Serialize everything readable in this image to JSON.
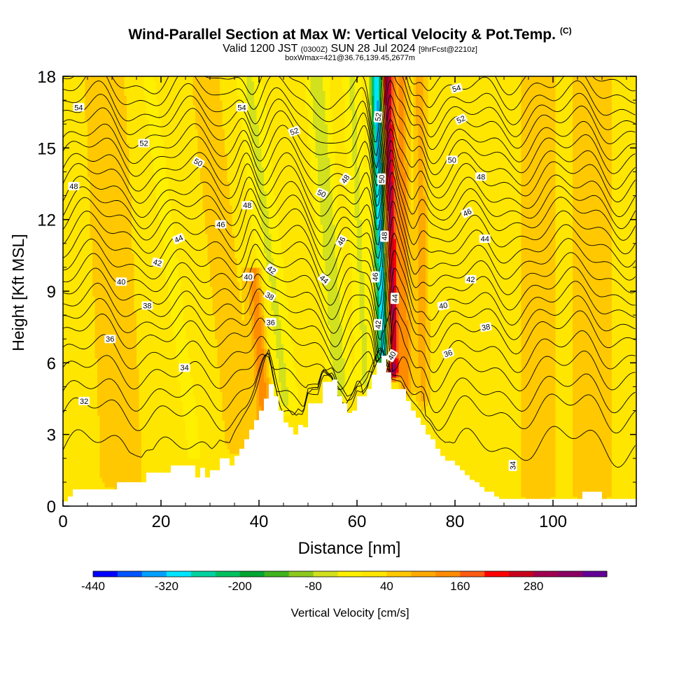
{
  "title": {
    "main": "Wind-Parallel Section at Max W: Vertical Velocity & Pot.Temp.",
    "copyright": "(C)",
    "valid_prefix": "Valid 1200 JST",
    "utc": "(0300Z)",
    "valid_date": "SUN 28 Jul 2024",
    "forecast": "[9hrFcst@2210z]",
    "box_info": "boxWmax=421@36.76,139.45,2677m"
  },
  "colors": {
    "terrain": "#ffffff",
    "contour": "#000000",
    "background_field": "#ffe600"
  },
  "chart_data": {
    "type": "heatmap",
    "xlabel": "Distance [nm]",
    "ylabel": "Height [Kft MSL]",
    "xlim": [
      0,
      117
    ],
    "ylim": [
      0,
      18
    ],
    "x_ticks": [
      "0",
      "20",
      "40",
      "60",
      "80",
      "100"
    ],
    "y_ticks": [
      "0",
      "3",
      "6",
      "9",
      "12",
      "15",
      "18"
    ],
    "colorbar": {
      "label": "Vertical Velocity [cm/s]",
      "tick_labels": [
        "-440",
        "-320",
        "-200",
        "-80",
        "40",
        "160",
        "280"
      ],
      "tick_values": [
        -440,
        -320,
        -200,
        -80,
        40,
        160,
        280
      ],
      "levels": [
        -440,
        -400,
        -360,
        -320,
        -280,
        -240,
        -200,
        -160,
        -120,
        -80,
        -40,
        0,
        40,
        80,
        120,
        160,
        200,
        240,
        280,
        320,
        360
      ],
      "colors": [
        "#0000ff",
        "#0055ff",
        "#00a0ff",
        "#00e5ff",
        "#00d2a0",
        "#00c060",
        "#00a532",
        "#40b41e",
        "#8cc81e",
        "#d2e11e",
        "#fff000",
        "#ffe600",
        "#ffc800",
        "#ffaa00",
        "#ff8c00",
        "#ff5a14",
        "#ff0000",
        "#c8001e",
        "#a00050",
        "#8c0064",
        "#640096"
      ]
    },
    "max_w_cm_s": 421,
    "max_w_location": {
      "lat": 36.76,
      "lon": 139.45,
      "height_m": 2677
    },
    "terrain_kft": {
      "x": [
        0,
        1,
        2,
        10,
        11,
        16,
        17,
        20,
        22,
        26,
        27,
        28,
        29,
        30,
        32,
        34,
        35,
        36,
        37,
        38,
        39,
        40,
        41,
        42,
        43,
        44,
        45,
        46,
        47,
        48,
        49,
        50,
        51,
        52,
        53,
        54,
        55,
        56,
        57,
        58,
        59,
        60,
        61,
        62,
        63,
        64,
        65,
        66,
        67,
        68,
        69,
        70,
        71,
        72,
        73,
        74,
        75,
        76,
        77,
        78,
        79,
        80,
        81,
        82,
        83,
        84,
        85,
        86,
        87,
        88,
        89,
        90,
        91,
        96,
        105,
        106,
        109,
        110,
        117
      ],
      "h": [
        0.2,
        0.4,
        0.7,
        0.7,
        1.0,
        1.0,
        1.4,
        1.4,
        1.7,
        1.7,
        1.2,
        1.6,
        1.2,
        1.5,
        2.0,
        1.7,
        2.1,
        2.4,
        2.8,
        3.2,
        3.6,
        4.0,
        4.5,
        5.1,
        4.6,
        4.0,
        3.5,
        3.3,
        3.0,
        3.4,
        3.3,
        4.3,
        4.3,
        4.3,
        5.2,
        5.2,
        5.3,
        4.6,
        4.3,
        3.9,
        4.0,
        4.6,
        4.6,
        4.9,
        5.5,
        6.0,
        6.3,
        5.6,
        4.9,
        4.9,
        4.9,
        4.4,
        4.0,
        3.7,
        3.4,
        3.0,
        2.8,
        2.4,
        2.1,
        1.9,
        1.9,
        1.7,
        1.5,
        1.3,
        1.1,
        1.0,
        0.8,
        0.6,
        0.6,
        0.4,
        0.3,
        0.3,
        0.3,
        0.3,
        0.3,
        0.6,
        0.6,
        0.3,
        0.3
      ]
    },
    "w_features": [
      {
        "x": 65.5,
        "z_bottom": 6.2,
        "z_top": 18,
        "tilt_nm_per_kft": -0.12,
        "half_width_nm": 1.3,
        "w_cm_s": -380
      },
      {
        "x": 67.3,
        "z_bottom": 5.6,
        "z_top": 18,
        "tilt_nm_per_kft": -0.1,
        "half_width_nm": 1.3,
        "w_cm_s": 300
      },
      {
        "x": 56.5,
        "z_bottom": 4.8,
        "z_top": 18,
        "tilt_nm_per_kft": -0.36,
        "half_width_nm": 2.2,
        "w_cm_s": -90
      },
      {
        "x": 45.5,
        "z_bottom": 4.2,
        "z_top": 18,
        "tilt_nm_per_kft": -0.55,
        "half_width_nm": 2.6,
        "w_cm_s": -70
      },
      {
        "x": 41.6,
        "z_bottom": 2.5,
        "z_top": 10,
        "tilt_nm_per_kft": -0.35,
        "half_width_nm": 1.6,
        "w_cm_s": 120
      },
      {
        "x": 61.8,
        "z_bottom": 5.0,
        "z_top": 18,
        "tilt_nm_per_kft": -0.22,
        "half_width_nm": 1.8,
        "w_cm_s": -70
      },
      {
        "x": 70.0,
        "z_bottom": 5.0,
        "z_top": 18,
        "tilt_nm_per_kft": -0.08,
        "half_width_nm": 1.2,
        "w_cm_s": 110
      },
      {
        "x": 73.5,
        "z_bottom": 4.5,
        "z_top": 18,
        "tilt_nm_per_kft": -0.05,
        "half_width_nm": 1.1,
        "w_cm_s": 80
      },
      {
        "x": 36.0,
        "z_bottom": 2.5,
        "z_top": 18,
        "tilt_nm_per_kft": -0.45,
        "half_width_nm": 2.8,
        "w_cm_s": 40
      },
      {
        "x": 27.0,
        "z_bottom": 2.0,
        "z_top": 18,
        "tilt_nm_per_kft": -0.6,
        "half_width_nm": 3.0,
        "w_cm_s": -30
      },
      {
        "x": 12.0,
        "z_bottom": 1.0,
        "z_top": 18,
        "tilt_nm_per_kft": -0.2,
        "half_width_nm": 4.0,
        "w_cm_s": 45
      },
      {
        "x": 97.0,
        "z_bottom": 0.5,
        "z_top": 18,
        "tilt_nm_per_kft": 0.0,
        "half_width_nm": 3.5,
        "w_cm_s": 45
      },
      {
        "x": 108.0,
        "z_bottom": 0.5,
        "z_top": 18,
        "tilt_nm_per_kft": 0.0,
        "half_width_nm": 3.5,
        "w_cm_s": 50
      }
    ],
    "theta_contours": {
      "description_levels": [
        32,
        34,
        36,
        38,
        40,
        42,
        44,
        46,
        48,
        50,
        52,
        54
      ],
      "levels": [
        31,
        32,
        33,
        34,
        35,
        36,
        37,
        38,
        39,
        40,
        41,
        42,
        43,
        44,
        45,
        46,
        47,
        48,
        49,
        50,
        51,
        52,
        53,
        54,
        55
      ],
      "base_height_kft": {
        "31": 2.4,
        "32": 3.8,
        "33": 4.6,
        "34": 5.5,
        "35": 6.3,
        "36": 7.1,
        "37": 7.7,
        "38": 8.3,
        "39": 8.9,
        "40": 9.5,
        "41": 10.1,
        "42": 10.7,
        "43": 11.3,
        "44": 11.9,
        "45": 12.4,
        "46": 12.9,
        "47": 13.5,
        "48": 14.0,
        "49": 14.6,
        "50": 15.1,
        "51": 15.7,
        "52": 16.2,
        "53": 16.7,
        "54": 17.3,
        "55": 17.9
      }
    },
    "contour_labels": [
      {
        "text": "54",
        "x": 3.2,
        "z": 16.7,
        "rot": 0
      },
      {
        "text": "54",
        "x": 36.5,
        "z": 16.7,
        "rot": 0
      },
      {
        "text": "54",
        "x": 80.3,
        "z": 17.5,
        "rot": -15
      },
      {
        "text": "52",
        "x": 16.5,
        "z": 15.2,
        "rot": 0
      },
      {
        "text": "52",
        "x": 47.2,
        "z": 15.7,
        "rot": -20
      },
      {
        "text": "52",
        "x": 81.2,
        "z": 16.2,
        "rot": -25
      },
      {
        "text": "52",
        "x": 64.3,
        "z": 16.3,
        "rot": -85
      },
      {
        "text": "50",
        "x": 27.6,
        "z": 14.4,
        "rot": 30
      },
      {
        "text": "50",
        "x": 52.8,
        "z": 13.1,
        "rot": 25
      },
      {
        "text": "50",
        "x": 79.4,
        "z": 14.5,
        "rot": 0
      },
      {
        "text": "50",
        "x": 65.0,
        "z": 13.7,
        "rot": -90
      },
      {
        "text": "48",
        "x": 2.2,
        "z": 13.4,
        "rot": 0
      },
      {
        "text": "48",
        "x": 37.6,
        "z": 12.6,
        "rot": 0
      },
      {
        "text": "48",
        "x": 57.6,
        "z": 13.7,
        "rot": -55
      },
      {
        "text": "48",
        "x": 85.3,
        "z": 13.8,
        "rot": 0
      },
      {
        "text": "48",
        "x": 65.6,
        "z": 11.3,
        "rot": -90
      },
      {
        "text": "46",
        "x": 32.2,
        "z": 11.8,
        "rot": 0
      },
      {
        "text": "46",
        "x": 56.8,
        "z": 11.1,
        "rot": -60
      },
      {
        "text": "46",
        "x": 82.5,
        "z": 12.3,
        "rot": -25
      },
      {
        "text": "46",
        "x": 63.7,
        "z": 9.6,
        "rot": -90
      },
      {
        "text": "44",
        "x": 23.6,
        "z": 11.2,
        "rot": -25
      },
      {
        "text": "44",
        "x": 53.3,
        "z": 9.5,
        "rot": 40
      },
      {
        "text": "44",
        "x": 86.1,
        "z": 11.2,
        "rot": 0
      },
      {
        "text": "44",
        "x": 67.7,
        "z": 8.7,
        "rot": -90
      },
      {
        "text": "42",
        "x": 19.3,
        "z": 10.2,
        "rot": 15
      },
      {
        "text": "42",
        "x": 42.6,
        "z": 9.9,
        "rot": 35
      },
      {
        "text": "42",
        "x": 83.2,
        "z": 9.5,
        "rot": 0
      },
      {
        "text": "42",
        "x": 64.3,
        "z": 7.6,
        "rot": -90
      },
      {
        "text": "40",
        "x": 11.9,
        "z": 9.4,
        "rot": 0
      },
      {
        "text": "40",
        "x": 37.8,
        "z": 9.6,
        "rot": 0
      },
      {
        "text": "40",
        "x": 77.6,
        "z": 8.4,
        "rot": -10
      },
      {
        "text": "40",
        "x": 67.1,
        "z": 6.3,
        "rot": -60
      },
      {
        "text": "38",
        "x": 17.2,
        "z": 8.4,
        "rot": 0
      },
      {
        "text": "38",
        "x": 42.2,
        "z": 8.8,
        "rot": 30
      },
      {
        "text": "38",
        "x": 86.3,
        "z": 7.5,
        "rot": -10
      },
      {
        "text": "36",
        "x": 9.6,
        "z": 7.0,
        "rot": 0
      },
      {
        "text": "36",
        "x": 42.4,
        "z": 7.7,
        "rot": 0
      },
      {
        "text": "36",
        "x": 78.6,
        "z": 6.4,
        "rot": -20
      },
      {
        "text": "34",
        "x": 24.8,
        "z": 5.8,
        "rot": 0
      },
      {
        "text": "34",
        "x": 91.8,
        "z": 1.7,
        "rot": -90
      },
      {
        "text": "32",
        "x": 4.3,
        "z": 4.4,
        "rot": 0
      }
    ]
  }
}
